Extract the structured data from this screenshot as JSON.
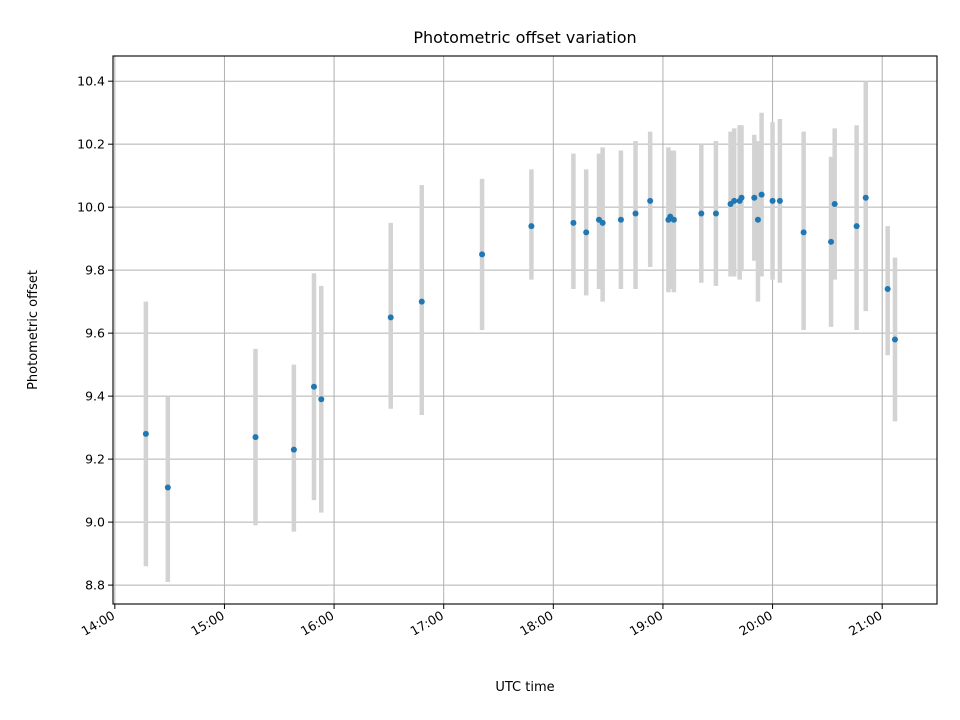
{
  "chart_data": {
    "type": "scatter",
    "title": "Photometric offset variation",
    "xlabel": "UTC time",
    "ylabel": "Photometric offset",
    "grid": true,
    "legend": "none",
    "xlim": [
      "13:59",
      "21:30"
    ],
    "ylim": [
      8.74,
      10.48
    ],
    "x_ticks": [
      "14:00",
      "15:00",
      "16:00",
      "17:00",
      "18:00",
      "19:00",
      "20:00",
      "21:00"
    ],
    "y_ticks": [
      "8.8",
      "9.0",
      "9.2",
      "9.4",
      "9.6",
      "9.8",
      "10.0",
      "10.2",
      "10.4"
    ],
    "marker_color": "#1f77b4",
    "errorbar_color": "#d3d3d3",
    "points": [
      {
        "t": "14:17",
        "y": 9.28,
        "lo": 8.86,
        "hi": 9.7
      },
      {
        "t": "14:29",
        "y": 9.11,
        "lo": 8.81,
        "hi": 9.4
      },
      {
        "t": "15:17",
        "y": 9.27,
        "lo": 8.99,
        "hi": 9.55
      },
      {
        "t": "15:38",
        "y": 9.23,
        "lo": 8.97,
        "hi": 9.5
      },
      {
        "t": "15:49",
        "y": 9.43,
        "lo": 9.07,
        "hi": 9.79
      },
      {
        "t": "15:53",
        "y": 9.39,
        "lo": 9.03,
        "hi": 9.75
      },
      {
        "t": "16:31",
        "y": 9.65,
        "lo": 9.36,
        "hi": 9.95
      },
      {
        "t": "16:48",
        "y": 9.7,
        "lo": 9.34,
        "hi": 10.07
      },
      {
        "t": "17:21",
        "y": 9.85,
        "lo": 9.61,
        "hi": 10.09
      },
      {
        "t": "17:48",
        "y": 9.94,
        "lo": 9.77,
        "hi": 10.12
      },
      {
        "t": "18:11",
        "y": 9.95,
        "lo": 9.74,
        "hi": 10.17
      },
      {
        "t": "18:18",
        "y": 9.92,
        "lo": 9.72,
        "hi": 10.12
      },
      {
        "t": "18:25",
        "y": 9.96,
        "lo": 9.74,
        "hi": 10.17
      },
      {
        "t": "18:27",
        "y": 9.95,
        "lo": 9.7,
        "hi": 10.19
      },
      {
        "t": "18:37",
        "y": 9.96,
        "lo": 9.74,
        "hi": 10.18
      },
      {
        "t": "18:45",
        "y": 9.98,
        "lo": 9.74,
        "hi": 10.21
      },
      {
        "t": "18:53",
        "y": 10.02,
        "lo": 9.81,
        "hi": 10.24
      },
      {
        "t": "19:03",
        "y": 9.96,
        "lo": 9.73,
        "hi": 10.19
      },
      {
        "t": "19:04",
        "y": 9.97,
        "lo": 9.74,
        "hi": 10.18
      },
      {
        "t": "19:06",
        "y": 9.96,
        "lo": 9.73,
        "hi": 10.18
      },
      {
        "t": "19:21",
        "y": 9.98,
        "lo": 9.76,
        "hi": 10.2
      },
      {
        "t": "19:29",
        "y": 9.98,
        "lo": 9.75,
        "hi": 10.21
      },
      {
        "t": "19:37",
        "y": 10.01,
        "lo": 9.78,
        "hi": 10.24
      },
      {
        "t": "19:39",
        "y": 10.02,
        "lo": 9.78,
        "hi": 10.25
      },
      {
        "t": "19:42",
        "y": 10.02,
        "lo": 9.77,
        "hi": 10.26
      },
      {
        "t": "19:43",
        "y": 10.03,
        "lo": 9.8,
        "hi": 10.26
      },
      {
        "t": "19:50",
        "y": 10.03,
        "lo": 9.83,
        "hi": 10.23
      },
      {
        "t": "19:52",
        "y": 9.96,
        "lo": 9.7,
        "hi": 10.21
      },
      {
        "t": "19:54",
        "y": 10.04,
        "lo": 9.78,
        "hi": 10.3
      },
      {
        "t": "20:00",
        "y": 10.02,
        "lo": 9.77,
        "hi": 10.27
      },
      {
        "t": "20:04",
        "y": 10.02,
        "lo": 9.76,
        "hi": 10.28
      },
      {
        "t": "20:17",
        "y": 9.92,
        "lo": 9.61,
        "hi": 10.24
      },
      {
        "t": "20:32",
        "y": 9.89,
        "lo": 9.62,
        "hi": 10.16
      },
      {
        "t": "20:34",
        "y": 10.01,
        "lo": 9.77,
        "hi": 10.25
      },
      {
        "t": "20:46",
        "y": 9.94,
        "lo": 9.61,
        "hi": 10.26
      },
      {
        "t": "20:51",
        "y": 10.03,
        "lo": 9.67,
        "hi": 10.4
      },
      {
        "t": "21:03",
        "y": 9.74,
        "lo": 9.53,
        "hi": 9.94
      },
      {
        "t": "21:07",
        "y": 9.58,
        "lo": 9.32,
        "hi": 9.84
      }
    ]
  }
}
